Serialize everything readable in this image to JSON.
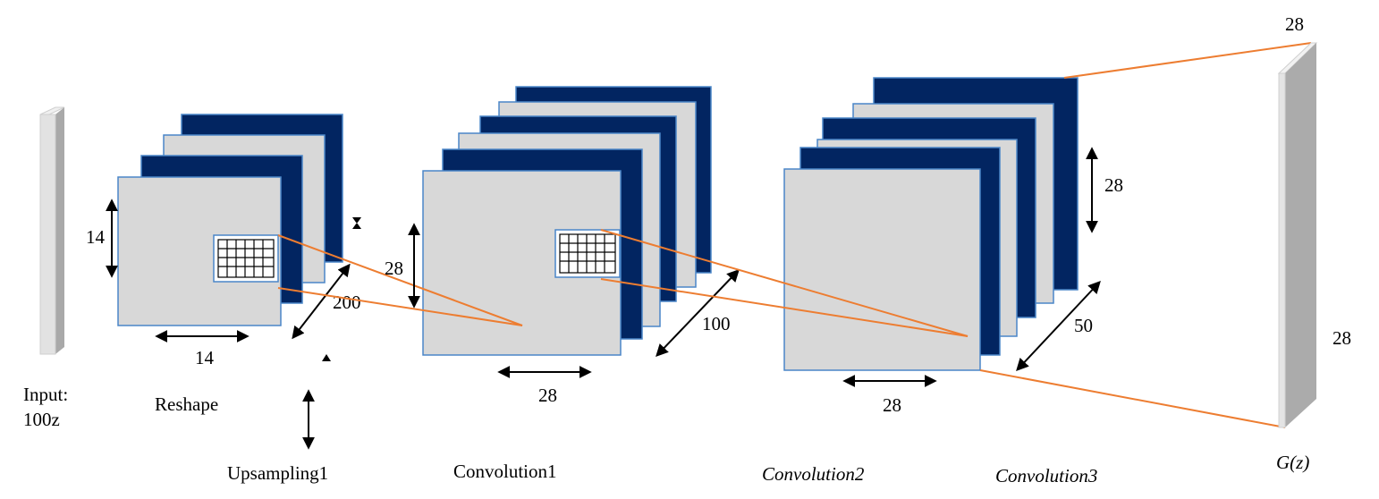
{
  "labels": {
    "input": [
      "Input:",
      "100z"
    ],
    "reshape": "Reshape",
    "upsampling": "Upsampling1",
    "conv1": "Convolution1",
    "conv2": "Convolution2",
    "conv3": "Convolution3",
    "output": "G(z)"
  },
  "dims": {
    "reshape_h": "14",
    "reshape_w": "14",
    "up_d": "200",
    "conv1_h": "28",
    "conv1_w": "28",
    "conv1_d": "100",
    "conv2_w": "28",
    "conv3_h": "28",
    "conv3_d": "50",
    "out_top": "28",
    "out_right": "28"
  },
  "colors": {
    "navy": "#022561",
    "grey": "#d8d8d8",
    "outline": "#4a86c8",
    "connector": "#ed7d31"
  }
}
